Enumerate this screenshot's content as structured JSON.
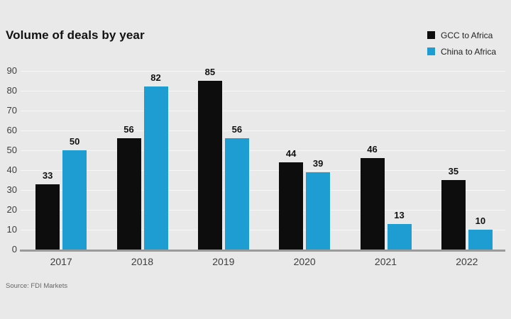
{
  "title": "Volume of deals by year",
  "source": "Source: FDI Markets",
  "legend": [
    {
      "label": "GCC to Africa",
      "color": "#0d0d0d"
    },
    {
      "label": "China to Africa",
      "color": "#1d9dd1"
    }
  ],
  "chart_data": {
    "type": "bar",
    "title": "Volume of deals by year",
    "categories": [
      "2017",
      "2018",
      "2019",
      "2020",
      "2021",
      "2022"
    ],
    "series": [
      {
        "name": "GCC to Africa",
        "color": "#0d0d0d",
        "values": [
          33,
          56,
          85,
          44,
          46,
          35
        ]
      },
      {
        "name": "China to Africa",
        "color": "#1d9dd1",
        "values": [
          50,
          82,
          56,
          39,
          13,
          10
        ]
      }
    ],
    "xlabel": "",
    "ylabel": "",
    "ylim": [
      0,
      90
    ],
    "ytick_interval": 10,
    "yticks": [
      0,
      10,
      20,
      30,
      40,
      50,
      60,
      70,
      80,
      90
    ],
    "grid": true,
    "legend_position": "top-right",
    "data_labels": true
  },
  "colors": {
    "background": "#e9e9e9",
    "axis": "#9b9b9b",
    "gridline": "#f4f4f4",
    "title_text": "#111111",
    "tick_text": "#3d3d3d",
    "source_text": "#666666"
  }
}
